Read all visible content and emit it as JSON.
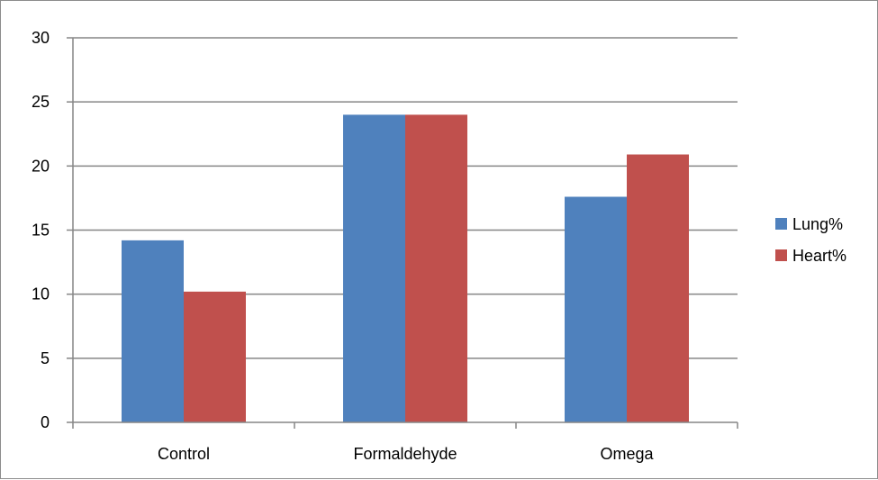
{
  "chart_data": {
    "type": "bar",
    "title": "",
    "xlabel": "",
    "ylabel": "",
    "categories": [
      "Control",
      "Formaldehyde",
      "Omega"
    ],
    "series": [
      {
        "name": "Lung%",
        "values": [
          14.2,
          24.0,
          17.6
        ],
        "color": "#4f81bd"
      },
      {
        "name": "Heart%",
        "values": [
          10.2,
          24.0,
          20.9
        ],
        "color": "#c0504d"
      }
    ],
    "ylim": [
      0,
      30
    ],
    "yticks": [
      "0",
      "5",
      "10",
      "15",
      "20",
      "25",
      "30"
    ],
    "grid": true,
    "legend_position": "right"
  }
}
